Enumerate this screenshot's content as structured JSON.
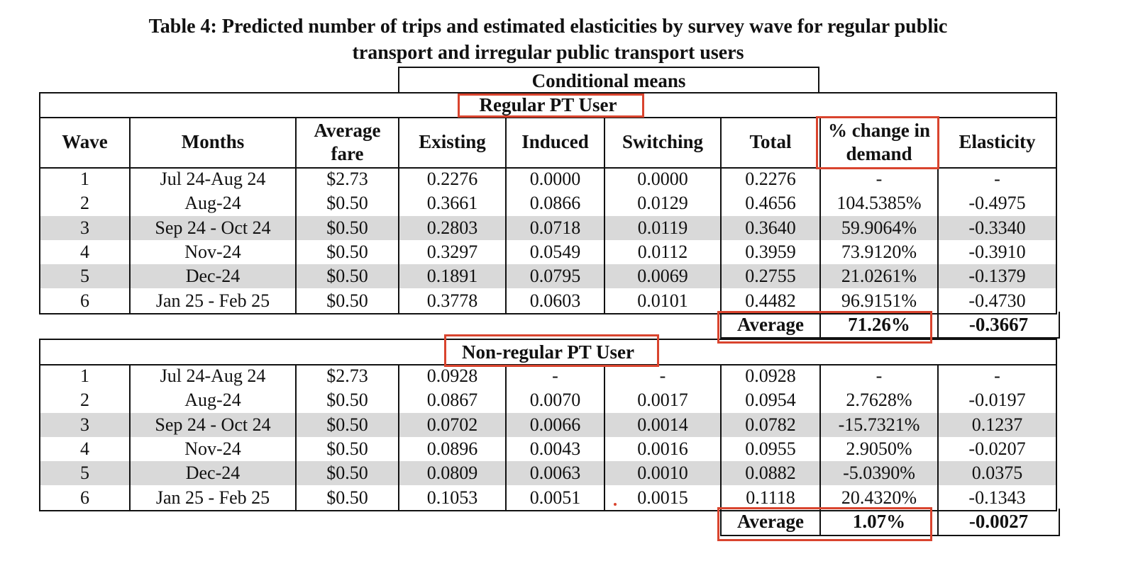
{
  "title": {
    "line1": "Table 4: Predicted number of trips and estimated elasticities by survey wave for regular public",
    "line2": "transport and irregular public transport users"
  },
  "conditional_means": "Conditional means",
  "columns": [
    "Wave",
    "Months",
    "Average fare",
    "Existing",
    "Induced",
    "Switching",
    "Total",
    "% change in demand",
    "Elasticity"
  ],
  "regular": {
    "label": "Regular PT User",
    "rows": [
      [
        "1",
        "Jul 24-Aug 24",
        "$2.73",
        "0.2276",
        "0.0000",
        "0.0000",
        "0.2276",
        "-",
        "-"
      ],
      [
        "2",
        "Aug-24",
        "$0.50",
        "0.3661",
        "0.0866",
        "0.0129",
        "0.4656",
        "104.5385%",
        "-0.4975"
      ],
      [
        "3",
        "Sep 24 - Oct 24",
        "$0.50",
        "0.2803",
        "0.0718",
        "0.0119",
        "0.3640",
        "59.9064%",
        "-0.3340"
      ],
      [
        "4",
        "Nov-24",
        "$0.50",
        "0.3297",
        "0.0549",
        "0.0112",
        "0.3959",
        "73.9120%",
        "-0.3910"
      ],
      [
        "5",
        "Dec-24",
        "$0.50",
        "0.1891",
        "0.0795",
        "0.0069",
        "0.2755",
        "21.0261%",
        "-0.1379"
      ],
      [
        "6",
        "Jan 25 - Feb 25",
        "$0.50",
        "0.3778",
        "0.0603",
        "0.0101",
        "0.4482",
        "96.9151%",
        "-0.4730"
      ]
    ],
    "average": {
      "label": "Average",
      "pct": "71.26%",
      "elasticity": "-0.3667"
    }
  },
  "nonregular": {
    "label": "Non-regular PT User",
    "rows": [
      [
        "1",
        "Jul 24-Aug 24",
        "$2.73",
        "0.0928",
        "-",
        "-",
        "0.0928",
        "-",
        "-"
      ],
      [
        "2",
        "Aug-24",
        "$0.50",
        "0.0867",
        "0.0070",
        "0.0017",
        "0.0954",
        "2.7628%",
        "-0.0197"
      ],
      [
        "3",
        "Sep 24 - Oct 24",
        "$0.50",
        "0.0702",
        "0.0066",
        "0.0014",
        "0.0782",
        "-15.7321%",
        "0.1237"
      ],
      [
        "4",
        "Nov-24",
        "$0.50",
        "0.0896",
        "0.0043",
        "0.0016",
        "0.0955",
        "2.9050%",
        "-0.0207"
      ],
      [
        "5",
        "Dec-24",
        "$0.50",
        "0.0809",
        "0.0063",
        "0.0010",
        "0.0882",
        "-5.0390%",
        "0.0375"
      ],
      [
        "6",
        "Jan 25 - Feb 25",
        "$0.50",
        "0.1053",
        "0.0051",
        "0.0015",
        "0.1118",
        "20.4320%",
        "-0.1343"
      ]
    ],
    "average": {
      "label": "Average",
      "pct": "1.07%",
      "elasticity": "-0.0027"
    }
  },
  "colors": {
    "highlight": "#d9442e",
    "stripe": "#d9d9d9"
  }
}
